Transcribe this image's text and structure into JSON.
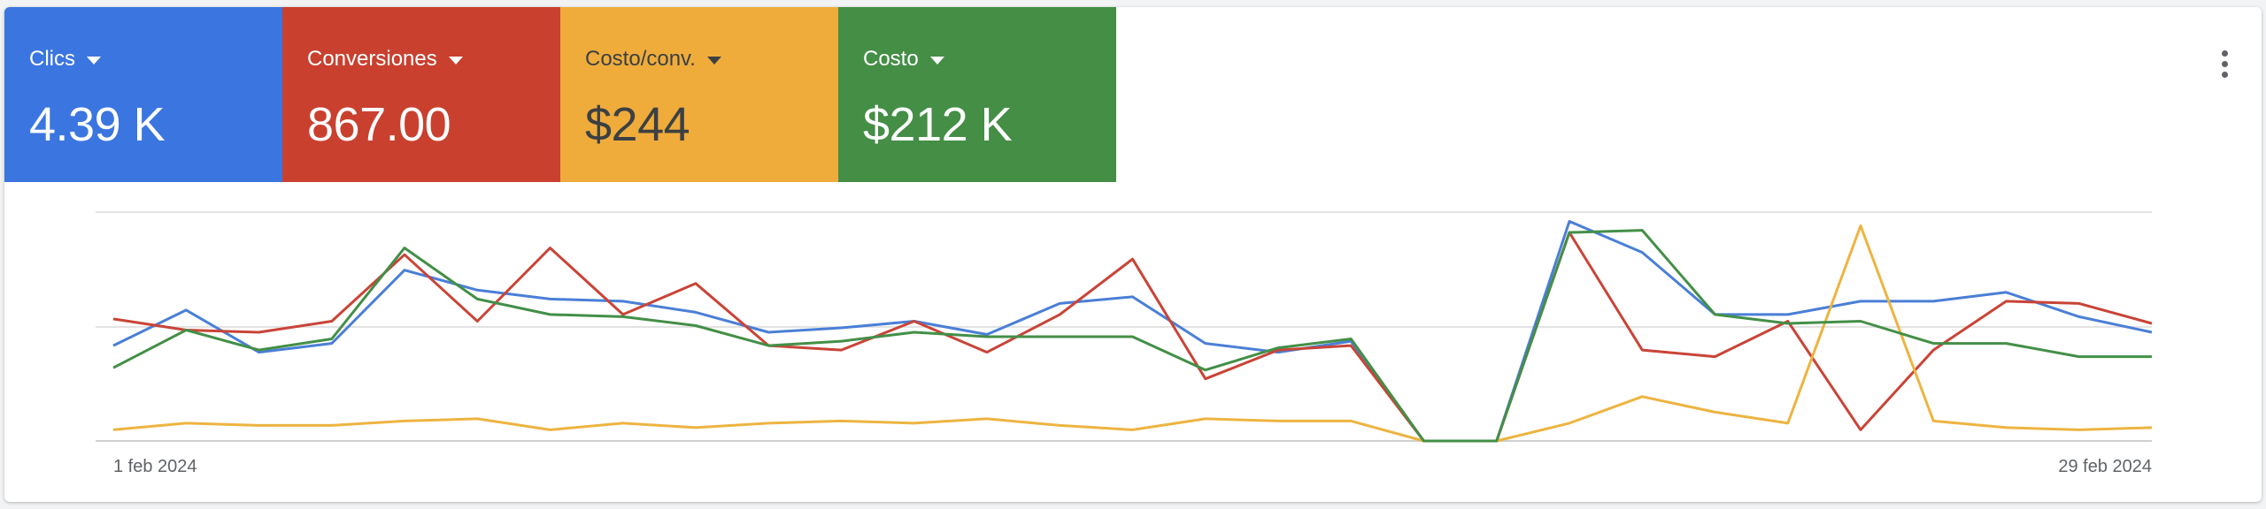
{
  "metrics": [
    {
      "label": "Clics",
      "value": "4.39 K",
      "bg": "#3b76e0",
      "fg": "#ffffff"
    },
    {
      "label": "Conversiones",
      "value": "867.00",
      "bg": "#c9402f",
      "fg": "#ffffff"
    },
    {
      "label": "Costo/conv.",
      "value": "$244",
      "bg": "#efac3b",
      "fg": "#3c4043"
    },
    {
      "label": "Costo",
      "value": "$212 K",
      "bg": "#448e46",
      "fg": "#ffffff"
    }
  ],
  "more_menu_icon": "more-vert-icon",
  "chart_data": {
    "type": "line",
    "x_start": "1 feb 2024",
    "x_end": "29 feb 2024",
    "x_ticks": [
      "1 feb 2024",
      "29 feb 2024"
    ],
    "ylim": [
      0,
      100
    ],
    "grid": true,
    "series": [
      {
        "name": "Clics",
        "color": "#4a7fd7",
        "values": [
          43,
          59,
          40,
          44,
          77,
          68,
          64,
          63,
          58,
          49,
          51,
          54,
          48,
          62,
          65,
          44,
          40,
          45,
          0,
          0,
          99,
          85,
          57,
          57,
          63,
          63,
          67,
          56,
          49
        ]
      },
      {
        "name": "Conversiones",
        "color": "#c94437",
        "values": [
          55,
          50,
          49,
          54,
          84,
          54,
          87,
          57,
          71,
          43,
          41,
          54,
          40,
          57,
          82,
          28,
          41,
          43,
          0,
          0,
          94,
          41,
          38,
          54,
          5,
          41,
          63,
          62,
          53
        ]
      },
      {
        "name": "Costo/conv.",
        "color": "#edb441",
        "values": [
          5,
          8,
          7,
          7,
          9,
          10,
          5,
          8,
          6,
          8,
          9,
          8,
          10,
          7,
          5,
          10,
          9,
          9,
          0,
          0,
          8,
          20,
          13,
          8,
          97,
          9,
          6,
          5,
          6
        ]
      },
      {
        "name": "Costo",
        "color": "#438f47",
        "values": [
          33,
          50,
          41,
          46,
          87,
          64,
          57,
          56,
          52,
          43,
          45,
          49,
          47,
          47,
          47,
          32,
          42,
          46,
          0,
          0,
          94,
          95,
          57,
          53,
          54,
          44,
          44,
          38,
          38
        ]
      }
    ]
  }
}
